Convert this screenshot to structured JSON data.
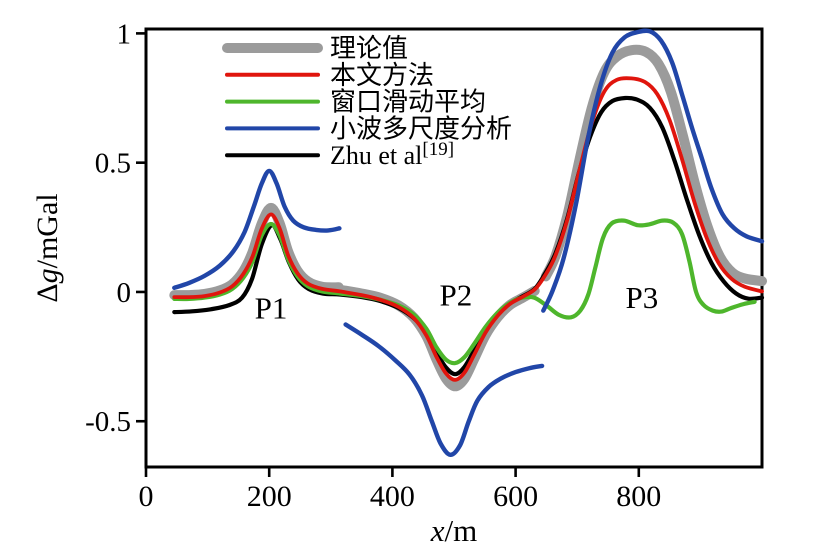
{
  "chart_data": {
    "type": "line",
    "title": "",
    "xlabel": "x/m",
    "xlabel_parts": {
      "italic": "x",
      "rest": "/m"
    },
    "ylabel": "Δg/mGal",
    "ylabel_parts": {
      "prefix": "Δ",
      "italic": "g",
      "rest": "/mGal"
    },
    "xlim": [
      0,
      1000
    ],
    "ylim": [
      -0.677,
      1.017
    ],
    "grid": false,
    "legend_position": "top-left-inside",
    "x_ticks": [
      {
        "value": 0,
        "label": "0"
      },
      {
        "value": 200,
        "label": "200"
      },
      {
        "value": 400,
        "label": "400"
      },
      {
        "value": 600,
        "label": "600"
      },
      {
        "value": 800,
        "label": "800"
      }
    ],
    "y_ticks": [
      {
        "value": 1,
        "label": "1"
      },
      {
        "value": 0.5,
        "label": "0.5"
      },
      {
        "value": 0,
        "label": "0"
      },
      {
        "value": -0.5,
        "label": "-0.5"
      }
    ],
    "annotations": [
      {
        "text": "P1",
        "x": 203,
        "y": -0.102
      },
      {
        "text": "P2",
        "x": 503,
        "y": -0.052
      },
      {
        "text": "P3",
        "x": 805,
        "y": -0.062
      }
    ],
    "series": [
      {
        "key": "theoretical",
        "name": "理论值",
        "name_sup": "",
        "color": "#9b9b9b",
        "width": 10,
        "segments": [
          [
            [
              46,
              -0.012
            ],
            [
              70,
              -0.012
            ],
            [
              95,
              -0.008
            ],
            [
              120,
              0.006
            ],
            [
              140,
              0.03
            ],
            [
              158,
              0.08
            ],
            [
              173,
              0.155
            ],
            [
              188,
              0.265
            ],
            [
              203,
              0.325
            ],
            [
              217,
              0.265
            ],
            [
              231,
              0.155
            ],
            [
              246,
              0.082
            ],
            [
              263,
              0.04
            ],
            [
              286,
              0.02
            ],
            [
              313,
              0.018
            ]
          ],
          [
            [
              321,
              0.006
            ],
            [
              350,
              -0.006
            ],
            [
              380,
              -0.022
            ],
            [
              410,
              -0.052
            ],
            [
              435,
              -0.1
            ],
            [
              455,
              -0.17
            ],
            [
              471,
              -0.258
            ],
            [
              487,
              -0.335
            ],
            [
              502,
              -0.365
            ],
            [
              517,
              -0.335
            ],
            [
              533,
              -0.258
            ],
            [
              551,
              -0.168
            ],
            [
              571,
              -0.098
            ],
            [
              591,
              -0.05
            ],
            [
              612,
              -0.022
            ],
            [
              631,
              0.004
            ]
          ],
          [
            [
              649,
              0.06
            ],
            [
              665,
              0.14
            ],
            [
              684,
              0.295
            ],
            [
              704,
              0.515
            ],
            [
              724,
              0.715
            ],
            [
              744,
              0.85
            ],
            [
              764,
              0.91
            ],
            [
              788,
              0.935
            ],
            [
              812,
              0.928
            ],
            [
              832,
              0.882
            ],
            [
              852,
              0.775
            ],
            [
              872,
              0.6
            ],
            [
              892,
              0.41
            ],
            [
              912,
              0.25
            ],
            [
              932,
              0.135
            ],
            [
              952,
              0.075
            ],
            [
              972,
              0.052
            ],
            [
              1000,
              0.042
            ]
          ]
        ]
      },
      {
        "key": "proposed",
        "name": "本文方法",
        "name_sup": "",
        "color": "#e0150d",
        "width": 3.8,
        "segments": [
          [
            [
              46,
              -0.02
            ],
            [
              70,
              -0.02
            ],
            [
              95,
              -0.016
            ],
            [
              120,
              -0.002
            ],
            [
              140,
              0.022
            ],
            [
              158,
              0.07
            ],
            [
              173,
              0.138
            ],
            [
              188,
              0.245
            ],
            [
              203,
              0.3
            ],
            [
              217,
              0.245
            ],
            [
              231,
              0.14
            ],
            [
              246,
              0.072
            ],
            [
              263,
              0.032
            ],
            [
              286,
              0.012
            ],
            [
              315,
              0.002
            ],
            [
              350,
              -0.012
            ],
            [
              380,
              -0.03
            ],
            [
              410,
              -0.058
            ],
            [
              435,
              -0.102
            ],
            [
              455,
              -0.168
            ],
            [
              471,
              -0.248
            ],
            [
              487,
              -0.315
            ],
            [
              502,
              -0.34
            ],
            [
              517,
              -0.312
            ],
            [
              533,
              -0.242
            ],
            [
              551,
              -0.158
            ],
            [
              571,
              -0.092
            ],
            [
              591,
              -0.046
            ],
            [
              612,
              -0.018
            ],
            [
              632,
              0.012
            ],
            [
              650,
              0.072
            ],
            [
              665,
              0.142
            ],
            [
              684,
              0.28
            ],
            [
              704,
              0.475
            ],
            [
              724,
              0.655
            ],
            [
              744,
              0.775
            ],
            [
              764,
              0.82
            ],
            [
              788,
              0.826
            ],
            [
              810,
              0.812
            ],
            [
              830,
              0.765
            ],
            [
              850,
              0.665
            ],
            [
              870,
              0.515
            ],
            [
              890,
              0.35
            ],
            [
              910,
              0.21
            ],
            [
              930,
              0.11
            ],
            [
              950,
              0.052
            ],
            [
              972,
              0.02
            ],
            [
              1000,
              0.002
            ]
          ]
        ]
      },
      {
        "key": "window-avg",
        "name": "窗口滑动平均",
        "name_sup": "",
        "color": "#4eb62c",
        "width": 4.2,
        "segments": [
          [
            [
              46,
              -0.027
            ],
            [
              70,
              -0.027
            ],
            [
              95,
              -0.022
            ],
            [
              120,
              -0.01
            ],
            [
              140,
              0.012
            ],
            [
              158,
              0.055
            ],
            [
              173,
              0.118
            ],
            [
              188,
              0.22
            ],
            [
              203,
              0.263
            ],
            [
              217,
              0.218
            ],
            [
              231,
              0.125
            ],
            [
              246,
              0.06
            ],
            [
              263,
              0.022
            ],
            [
              286,
              0.002
            ],
            [
              315,
              -0.006
            ],
            [
              350,
              -0.016
            ],
            [
              380,
              -0.03
            ],
            [
              410,
              -0.052
            ],
            [
              435,
              -0.088
            ],
            [
              455,
              -0.142
            ],
            [
              471,
              -0.212
            ],
            [
              487,
              -0.262
            ],
            [
              502,
              -0.275
            ],
            [
              517,
              -0.252
            ],
            [
              533,
              -0.2
            ],
            [
              551,
              -0.136
            ],
            [
              571,
              -0.08
            ],
            [
              591,
              -0.042
            ],
            [
              611,
              -0.022
            ],
            [
              630,
              -0.022
            ],
            [
              650,
              -0.052
            ],
            [
              670,
              -0.088
            ],
            [
              690,
              -0.098
            ],
            [
              705,
              -0.072
            ],
            [
              718,
              -0.01
            ],
            [
              730,
              0.1
            ],
            [
              742,
              0.21
            ],
            [
              756,
              0.265
            ],
            [
              776,
              0.276
            ],
            [
              798,
              0.258
            ],
            [
              818,
              0.262
            ],
            [
              838,
              0.276
            ],
            [
              856,
              0.268
            ],
            [
              870,
              0.225
            ],
            [
              882,
              0.12
            ],
            [
              893,
              0.0
            ],
            [
              905,
              -0.05
            ],
            [
              920,
              -0.072
            ],
            [
              934,
              -0.076
            ],
            [
              950,
              -0.062
            ],
            [
              970,
              -0.047
            ],
            [
              988,
              -0.038
            ]
          ]
        ]
      },
      {
        "key": "wavelet",
        "name": "小波多尺度分析",
        "name_sup": "",
        "color": "#2146a8",
        "width": 4.4,
        "segments": [
          [
            [
              46,
              0.016
            ],
            [
              70,
              0.035
            ],
            [
              95,
              0.062
            ],
            [
              120,
              0.102
            ],
            [
              142,
              0.158
            ],
            [
              160,
              0.232
            ],
            [
              175,
              0.33
            ],
            [
              188,
              0.42
            ],
            [
              200,
              0.468
            ],
            [
              212,
              0.42
            ],
            [
              225,
              0.33
            ],
            [
              239,
              0.276
            ],
            [
              256,
              0.25
            ],
            [
              276,
              0.24
            ],
            [
              296,
              0.238
            ],
            [
              314,
              0.246
            ]
          ],
          [
            [
              324,
              -0.126
            ],
            [
              350,
              -0.165
            ],
            [
              378,
              -0.21
            ],
            [
              405,
              -0.265
            ],
            [
              428,
              -0.32
            ],
            [
              448,
              -0.4
            ],
            [
              464,
              -0.5
            ],
            [
              478,
              -0.585
            ],
            [
              494,
              -0.63
            ],
            [
              510,
              -0.592
            ],
            [
              524,
              -0.5
            ],
            [
              538,
              -0.42
            ],
            [
              556,
              -0.368
            ],
            [
              576,
              -0.335
            ],
            [
              600,
              -0.31
            ],
            [
              622,
              -0.295
            ],
            [
              643,
              -0.286
            ]
          ],
          [
            [
              645,
              -0.072
            ],
            [
              660,
              0.005
            ],
            [
              678,
              0.13
            ],
            [
              698,
              0.34
            ],
            [
              718,
              0.6
            ],
            [
              738,
              0.8
            ],
            [
              757,
              0.925
            ],
            [
              777,
              0.985
            ],
            [
              798,
              1.005
            ],
            [
              818,
              1.008
            ],
            [
              836,
              0.972
            ],
            [
              854,
              0.888
            ],
            [
              871,
              0.758
            ],
            [
              887,
              0.63
            ],
            [
              902,
              0.52
            ],
            [
              918,
              0.4
            ],
            [
              936,
              0.3
            ],
            [
              955,
              0.246
            ],
            [
              975,
              0.215
            ],
            [
              1000,
              0.196
            ]
          ]
        ]
      },
      {
        "key": "zhu",
        "name": "Zhu et al",
        "name_sup": "[19]",
        "color": "#000000",
        "width": 4.2,
        "segments": [
          [
            [
              46,
              -0.078
            ],
            [
              75,
              -0.075
            ],
            [
              105,
              -0.067
            ],
            [
              135,
              -0.051
            ],
            [
              156,
              -0.022
            ],
            [
              172,
              0.05
            ],
            [
              188,
              0.185
            ],
            [
              204,
              0.258
            ],
            [
              218,
              0.205
            ],
            [
              232,
              0.115
            ],
            [
              247,
              0.048
            ],
            [
              264,
              0.012
            ],
            [
              287,
              -0.006
            ],
            [
              315,
              -0.01
            ],
            [
              350,
              -0.02
            ],
            [
              380,
              -0.035
            ],
            [
              410,
              -0.062
            ],
            [
              435,
              -0.102
            ],
            [
              455,
              -0.158
            ],
            [
              471,
              -0.232
            ],
            [
              487,
              -0.292
            ],
            [
              502,
              -0.318
            ],
            [
              517,
              -0.29
            ],
            [
              533,
              -0.225
            ],
            [
              551,
              -0.148
            ],
            [
              571,
              -0.088
            ],
            [
              591,
              -0.044
            ],
            [
              612,
              -0.016
            ],
            [
              632,
              0.014
            ],
            [
              650,
              0.08
            ],
            [
              665,
              0.15
            ],
            [
              684,
              0.285
            ],
            [
              703,
              0.462
            ],
            [
              721,
              0.6
            ],
            [
              739,
              0.695
            ],
            [
              757,
              0.738
            ],
            [
              778,
              0.75
            ],
            [
              798,
              0.743
            ],
            [
              818,
              0.712
            ],
            [
              838,
              0.637
            ],
            [
              858,
              0.508
            ],
            [
              878,
              0.358
            ],
            [
              898,
              0.22
            ],
            [
              918,
              0.112
            ],
            [
              938,
              0.04
            ],
            [
              958,
              -0.006
            ],
            [
              978,
              -0.026
            ],
            [
              1000,
              -0.022
            ]
          ]
        ]
      }
    ],
    "draw_order": [
      "theoretical",
      "zhu",
      "window-avg",
      "proposed",
      "wavelet"
    ],
    "axis_color": "#000000"
  }
}
